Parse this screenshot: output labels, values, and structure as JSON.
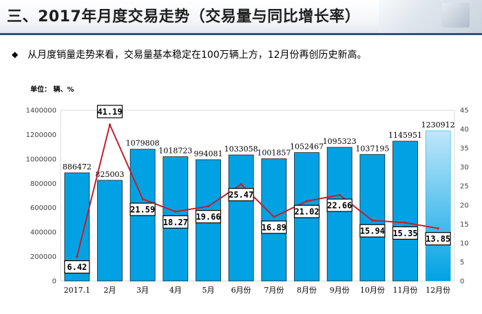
{
  "header": {
    "title": "三、2017年月度交易走势（交易量与同比增长率）"
  },
  "summary": {
    "bullet": "◆",
    "text": "从月度销量走势来看，交易量基本稳定在100万辆上方，12月份再创历史新高。"
  },
  "chart_data": {
    "type": "bar",
    "unit_label": "单位： 辆、%",
    "categories": [
      "2017.1",
      "2月",
      "3月",
      "4月",
      "5月",
      "6月份",
      "7月份",
      "8月份",
      "9月份",
      "10月份",
      "11月份",
      "12月份"
    ],
    "series": [
      {
        "type": "bar",
        "values": [
          886472,
          825003,
          1079808,
          1018723,
          994081,
          1033058,
          1001857,
          1052467,
          1095323,
          1037195,
          1145951,
          1230912
        ],
        "value_labels": [
          "886472",
          "825003",
          "1079808",
          "1018723",
          "994081",
          "1033058",
          "1001857",
          "1052467",
          "1095323",
          "1037195",
          "1145951",
          "1230912"
        ]
      },
      {
        "type": "line",
        "values": [
          6.42,
          41.19,
          21.59,
          18.27,
          19.66,
          25.47,
          16.89,
          21.02,
          22.66,
          15.94,
          15.35,
          13.85
        ],
        "value_labels": [
          "6.42",
          "41.19",
          "21.59",
          "18.27",
          "19.66",
          "25.47",
          "16.89",
          "21.02",
          "22.66",
          "15.94",
          "15.35",
          "13.85"
        ]
      }
    ],
    "y_left": {
      "lim": [
        0,
        1400000
      ],
      "ticks": [
        "0",
        "200000",
        "400000",
        "600000",
        "800000",
        "1000000",
        "1200000",
        "1400000"
      ]
    },
    "y_right": {
      "lim": [
        0,
        45
      ],
      "ticks": [
        "0",
        "5",
        "10",
        "15",
        "20",
        "25",
        "30",
        "35",
        "40",
        "45"
      ]
    },
    "grid": false,
    "legend": "none",
    "colors": {
      "bar": "#00a2e3",
      "bar_edge": "#1f1f1f",
      "bar_highlight": "#8fd3f7",
      "line": "#c0202a",
      "plot_bg": "#ffffff"
    }
  }
}
